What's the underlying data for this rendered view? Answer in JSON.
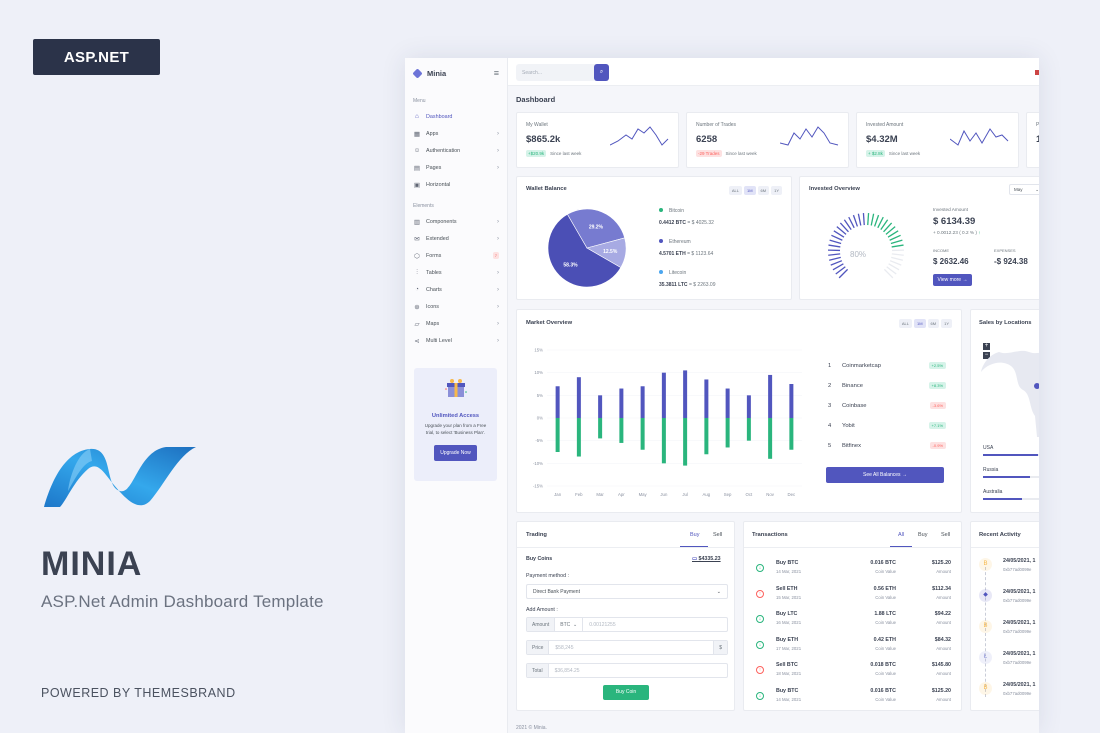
{
  "promo": {
    "badge": "ASP.NET",
    "title": "MINIA",
    "subtitle": "ASP.Net Admin Dashboard Template",
    "powered": "POWERED BY THEMESBRAND"
  },
  "sidebar": {
    "brand": "Minia",
    "menu_heading": "Menu",
    "elements_heading": "Elements",
    "menu_items": [
      {
        "label": "Dashboard",
        "icon": "home-icon"
      },
      {
        "label": "Apps",
        "icon": "grid-icon"
      },
      {
        "label": "Authentication",
        "icon": "users-icon"
      },
      {
        "label": "Pages",
        "icon": "file-icon"
      },
      {
        "label": "Horizontal",
        "icon": "layout-icon"
      }
    ],
    "element_items": [
      {
        "label": "Components",
        "icon": "briefcase-icon"
      },
      {
        "label": "Extended",
        "icon": "gift-icon"
      },
      {
        "label": "Forms",
        "icon": "box-icon",
        "badge": "7"
      },
      {
        "label": "Tables",
        "icon": "sliders-icon"
      },
      {
        "label": "Charts",
        "icon": "pie-chart-icon"
      },
      {
        "label": "Icons",
        "icon": "cpu-icon"
      },
      {
        "label": "Maps",
        "icon": "map-icon"
      },
      {
        "label": "Multi Level",
        "icon": "share-icon"
      }
    ],
    "upgrade": {
      "title": "Unlimited Access",
      "desc": "Upgrade your plan from a Free trial, to select 'Business Plan'.",
      "button": "Upgrade Now"
    }
  },
  "topbar": {
    "search_placeholder": "Search..."
  },
  "page_title": "Dashboard",
  "stats": [
    {
      "label": "My Wallet",
      "value": "$865.2k",
      "change": "+$20.9k",
      "change_text": "Since last week",
      "trend": "up"
    },
    {
      "label": "Number of Trades",
      "value": "6258",
      "change": "-29 Trades",
      "change_text": "Since last week",
      "trend": "down"
    },
    {
      "label": "Invested Amount",
      "value": "$4.32M",
      "change": "+ $2.8k",
      "change_text": "Since last week",
      "trend": "up"
    },
    {
      "label": "P",
      "value": "1",
      "change": "",
      "change_text": "",
      "trend": "up"
    }
  ],
  "wallet": {
    "title": "Wallet Balance",
    "tabs": [
      "ALL",
      "1M",
      "6M",
      "1Y"
    ],
    "slices": [
      {
        "label": "58.3%",
        "value": 58.3,
        "color": "#4b4fb5"
      },
      {
        "label": "29.2%",
        "value": 29.2,
        "color": "#777bd0"
      },
      {
        "label": "12.5%",
        "value": 12.5,
        "color": "#a7aae3"
      }
    ],
    "coins": [
      {
        "name": "Bitcoin",
        "amount": "0.4412 BTC",
        "usd": "= $ 4025.32",
        "color": "#2ab57d"
      },
      {
        "name": "Ethereum",
        "amount": "4.5701 ETH",
        "usd": "= $ 1123.64",
        "color": "#5156be"
      },
      {
        "name": "Litecoin",
        "amount": "35.3811 LTC",
        "usd": "= $ 2263.09",
        "color": "#4ba6ef"
      }
    ]
  },
  "invested": {
    "title": "Invested Overview",
    "select": "May",
    "gauge_label": "80%",
    "gauge_value": 80,
    "amount_label": "Invested Amount",
    "amount": "$ 6134.39",
    "amount_change": "+ 0.0012.23 ( 0.2 % )",
    "income_label": "INCOME",
    "income": "$ 2632.46",
    "expenses_label": "EXPENSES",
    "expenses": "-$ 924.38",
    "button": "View more"
  },
  "market": {
    "title": "Market Overview",
    "tabs": [
      "ALL",
      "1M",
      "6M",
      "1Y"
    ],
    "yticks": [
      "15%",
      "10%",
      "5%",
      "0%",
      "-5%",
      "-10%",
      "-15%"
    ],
    "list": [
      {
        "num": "1",
        "name": "Coinmarketcap",
        "change": "+2.5%",
        "up": true
      },
      {
        "num": "2",
        "name": "Binance",
        "change": "+8.3%",
        "up": true
      },
      {
        "num": "3",
        "name": "Coinbase",
        "change": "-3.6%",
        "up": false
      },
      {
        "num": "4",
        "name": "Yobit",
        "change": "+7.1%",
        "up": true
      },
      {
        "num": "5",
        "name": "Bitfinex",
        "change": "-0.9%",
        "up": false
      }
    ],
    "button": "See All Balances"
  },
  "chart_data": {
    "type": "bar",
    "categories": [
      "Jan",
      "Feb",
      "Mar",
      "Apr",
      "May",
      "Jun",
      "Jul",
      "Aug",
      "Sep",
      "Oct",
      "Nov",
      "Dec"
    ],
    "series": [
      {
        "values": [
          7,
          9,
          5,
          6.5,
          7,
          10,
          10.5,
          8.5,
          6.5,
          5,
          9.5,
          7.5
        ],
        "color": "#5156be"
      },
      {
        "values": [
          -7.5,
          -8.5,
          -4.5,
          -5.5,
          -7,
          -10,
          -10.5,
          -8,
          -6.5,
          -5,
          -9,
          -7
        ],
        "color": "#2ab57d"
      }
    ],
    "ylim": [
      -15,
      15
    ]
  },
  "sales": {
    "title": "Sales by Locations",
    "countries": [
      {
        "name": "USA",
        "pct": 0.7
      },
      {
        "name": "Russia",
        "pct": 0.6
      },
      {
        "name": "Australia",
        "pct": 0.5
      }
    ]
  },
  "trading": {
    "title": "Trading",
    "tabs": [
      "Buy",
      "Sell"
    ],
    "buy_coins": "Buy Coins",
    "balance": "$4335.23",
    "payment_label": "Payment method :",
    "payment_value": "Direct Bank Payment",
    "add_amount": "Add Amount :",
    "amount_addon": "Amount",
    "coin_select": "BTC",
    "amount_ph": "0.00121255",
    "price_addon": "Price",
    "price_ph": "$58,245",
    "price_suffix": "$",
    "total_addon": "Total",
    "total_ph": "$36,854.25",
    "button": "Buy Coin"
  },
  "transactions": {
    "title": "Transactions",
    "tabs": [
      "All",
      "Buy",
      "Sell"
    ],
    "rows": [
      {
        "name": "Buy BTC",
        "date": "14 Mar, 2021",
        "coin": "0.016 BTC",
        "coin_label": "Coin Value",
        "usd": "$125.20",
        "usd_label": "Amount",
        "type": "buy"
      },
      {
        "name": "Sell ETH",
        "date": "15 Mar, 2021",
        "coin": "0.56 ETH",
        "coin_label": "Coin Value",
        "usd": "$112.34",
        "usd_label": "Amount",
        "type": "sell"
      },
      {
        "name": "Buy LTC",
        "date": "16 Mar, 2021",
        "coin": "1.88 LTC",
        "coin_label": "Coin Value",
        "usd": "$94.22",
        "usd_label": "Amount",
        "type": "buy"
      },
      {
        "name": "Buy ETH",
        "date": "17 Mar, 2021",
        "coin": "0.42 ETH",
        "coin_label": "Coin Value",
        "usd": "$84.32",
        "usd_label": "Amount",
        "type": "buy"
      },
      {
        "name": "Sell BTC",
        "date": "18 Mar, 2021",
        "coin": "0.018 BTC",
        "coin_label": "Coin Value",
        "usd": "$145.80",
        "usd_label": "Amount",
        "type": "sell"
      },
      {
        "name": "Buy BTC",
        "date": "14 Mar, 2021",
        "coin": "0.016 BTC",
        "coin_label": "Coin Value",
        "usd": "$125.20",
        "usd_label": "Amount",
        "type": "buy"
      }
    ]
  },
  "activity": {
    "title": "Recent Activity",
    "rows": [
      {
        "date": "24/05/2021, 1",
        "hash": "0xb77ad0099e",
        "coin": "B",
        "color": "#f7b84b"
      },
      {
        "date": "24/05/2021, 1",
        "hash": "0xb77ad0099e",
        "coin": "◆",
        "color": "#5156be"
      },
      {
        "date": "24/05/2021, 1",
        "hash": "0xb77ad0099e",
        "coin": "B",
        "color": "#f7b84b"
      },
      {
        "date": "24/05/2021, 1",
        "hash": "0xb77ad0099e",
        "coin": "Ł",
        "color": "#8a8fd6"
      },
      {
        "date": "24/05/2021, 1",
        "hash": "0xb77ad0099e",
        "coin": "B",
        "color": "#f7b84b"
      }
    ]
  },
  "footer": "2021 © Minia."
}
